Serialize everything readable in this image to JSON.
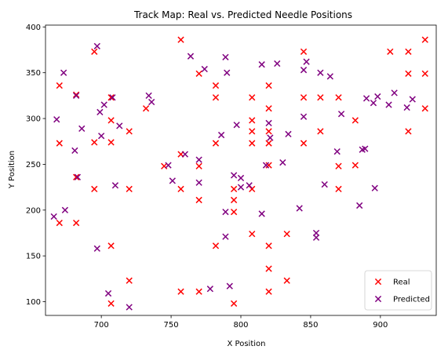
{
  "chart_data": {
    "type": "scatter",
    "title": "Track Map: Real vs. Predicted Needle Positions",
    "xlabel": "X Position",
    "ylabel": "Y Position",
    "xlim": [
      660,
      940
    ],
    "ylim": [
      85,
      402
    ],
    "xticks": [
      700,
      750,
      800,
      850,
      900
    ],
    "yticks": [
      100,
      150,
      200,
      250,
      300,
      350,
      400
    ],
    "grid": false,
    "legend_position": "lower-right",
    "marker": "x",
    "series": [
      {
        "name": "Real",
        "color": "#ff0000",
        "points": [
          [
            670,
            336
          ],
          [
            670,
            273
          ],
          [
            670,
            186
          ],
          [
            682,
            326
          ],
          [
            682,
            236
          ],
          [
            682,
            186
          ],
          [
            695,
            373
          ],
          [
            695,
            274
          ],
          [
            695,
            223
          ],
          [
            707,
            323
          ],
          [
            707,
            298
          ],
          [
            707,
            274
          ],
          [
            707,
            161
          ],
          [
            707,
            98
          ],
          [
            720,
            286
          ],
          [
            720,
            223
          ],
          [
            720,
            123
          ],
          [
            732,
            311
          ],
          [
            745,
            248
          ],
          [
            757,
            386
          ],
          [
            757,
            261
          ],
          [
            757,
            223
          ],
          [
            757,
            111
          ],
          [
            770,
            349
          ],
          [
            770,
            248
          ],
          [
            770,
            211
          ],
          [
            770,
            111
          ],
          [
            782,
            336
          ],
          [
            782,
            323
          ],
          [
            782,
            273
          ],
          [
            782,
            161
          ],
          [
            795,
            198
          ],
          [
            795,
            223
          ],
          [
            795,
            211
          ],
          [
            795,
            98
          ],
          [
            808,
            323
          ],
          [
            808,
            298
          ],
          [
            808,
            286
          ],
          [
            808,
            273
          ],
          [
            808,
            223
          ],
          [
            808,
            174
          ],
          [
            820,
            336
          ],
          [
            820,
            311
          ],
          [
            820,
            286
          ],
          [
            820,
            273
          ],
          [
            820,
            249
          ],
          [
            820,
            161
          ],
          [
            820,
            136
          ],
          [
            820,
            111
          ],
          [
            833,
            174
          ],
          [
            833,
            123
          ],
          [
            845,
            373
          ],
          [
            845,
            323
          ],
          [
            845,
            273
          ],
          [
            857,
            323
          ],
          [
            857,
            286
          ],
          [
            870,
            323
          ],
          [
            870,
            248
          ],
          [
            870,
            223
          ],
          [
            882,
            298
          ],
          [
            882,
            249
          ],
          [
            907,
            373
          ],
          [
            920,
            373
          ],
          [
            920,
            349
          ],
          [
            920,
            286
          ],
          [
            932,
            386
          ],
          [
            932,
            349
          ],
          [
            932,
            311
          ]
        ]
      },
      {
        "name": "Predicted",
        "color": "#800080",
        "points": [
          [
            666,
            193
          ],
          [
            668,
            299
          ],
          [
            673,
            350
          ],
          [
            674,
            200
          ],
          [
            681,
            265
          ],
          [
            682,
            325
          ],
          [
            683,
            236
          ],
          [
            686,
            289
          ],
          [
            697,
            379
          ],
          [
            697,
            158
          ],
          [
            699,
            307
          ],
          [
            700,
            281
          ],
          [
            702,
            315
          ],
          [
            705,
            109
          ],
          [
            708,
            323
          ],
          [
            710,
            227
          ],
          [
            713,
            292
          ],
          [
            720,
            94
          ],
          [
            734,
            325
          ],
          [
            736,
            318
          ],
          [
            748,
            249
          ],
          [
            751,
            232
          ],
          [
            760,
            261
          ],
          [
            764,
            368
          ],
          [
            770,
            255
          ],
          [
            770,
            230
          ],
          [
            774,
            354
          ],
          [
            778,
            114
          ],
          [
            786,
            282
          ],
          [
            789,
            367
          ],
          [
            789,
            198
          ],
          [
            789,
            171
          ],
          [
            790,
            350
          ],
          [
            792,
            117
          ],
          [
            795,
            238
          ],
          [
            797,
            293
          ],
          [
            800,
            235
          ],
          [
            800,
            225
          ],
          [
            806,
            227
          ],
          [
            815,
            359
          ],
          [
            815,
            196
          ],
          [
            818,
            249
          ],
          [
            820,
            295
          ],
          [
            821,
            279
          ],
          [
            826,
            360
          ],
          [
            830,
            252
          ],
          [
            834,
            283
          ],
          [
            842,
            202
          ],
          [
            845,
            302
          ],
          [
            845,
            353
          ],
          [
            847,
            362
          ],
          [
            854,
            175
          ],
          [
            854,
            170
          ],
          [
            857,
            350
          ],
          [
            860,
            228
          ],
          [
            864,
            346
          ],
          [
            869,
            264
          ],
          [
            872,
            305
          ],
          [
            885,
            205
          ],
          [
            887,
            266
          ],
          [
            889,
            267
          ],
          [
            890,
            322
          ],
          [
            895,
            317
          ],
          [
            896,
            224
          ],
          [
            898,
            324
          ],
          [
            906,
            315
          ],
          [
            910,
            328
          ],
          [
            919,
            312
          ],
          [
            923,
            321
          ]
        ]
      }
    ]
  }
}
